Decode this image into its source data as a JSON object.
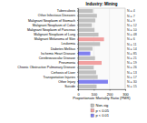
{
  "chart_data": {
    "type": "bar",
    "orientation": "horizontal",
    "title": "Industry: Mining",
    "x_label": "Proportionate Mortality Ratio (PMR)",
    "categories": [
      "Tuberculosis",
      "Other Infectious Diseases",
      "Malignant Neoplasm of Stomach",
      "Malignant Neoplasm of Colon",
      "Malignant Neoplasm of Pancreas",
      "Malignant Neoplasm of Lung",
      "Malignant Melanoma of Skin",
      "Leukemia",
      "Diabetes Mellitus",
      "Ischemic Heart Disease",
      "Cerebrovascular Disease",
      "Pneumonia",
      "Chronic Obstructive Pulmonary Disease",
      "Cirrhosis of Liver",
      "Transportation Injuries",
      "Other Injury",
      "Suicide"
    ],
    "series": [
      {
        "name": "Non-sig",
        "color": "#c0c0c0",
        "values": [
          95,
          120,
          110,
          88,
          105,
          130,
          null,
          140,
          92,
          null,
          108,
          null,
          99,
          115,
          125,
          null,
          118
        ]
      },
      {
        "name": "p < 0.05",
        "color": "#f2a0a0",
        "values": [
          null,
          null,
          null,
          null,
          null,
          null,
          165,
          null,
          null,
          null,
          null,
          150,
          null,
          null,
          null,
          null,
          null
        ]
      },
      {
        "name": "p < 0.01",
        "color": "#8080f0",
        "values": [
          null,
          null,
          null,
          null,
          null,
          null,
          null,
          null,
          null,
          78,
          null,
          null,
          null,
          null,
          null,
          190,
          null
        ]
      }
    ],
    "annotations": [
      "N = 4",
      "N = 7",
      "N = 9",
      "N = 12",
      "N = 10",
      "N = 48",
      "N = 6",
      "N = 11",
      "N = 14",
      "N = 85",
      "N = 21",
      "N = 19",
      "N = 26",
      "N = 13",
      "N = 17",
      "N = 30",
      "N = 15"
    ],
    "xlim": [
      0,
      300
    ],
    "xticks": [
      0,
      100,
      200,
      300
    ],
    "grid": true,
    "legend": "bottom"
  }
}
